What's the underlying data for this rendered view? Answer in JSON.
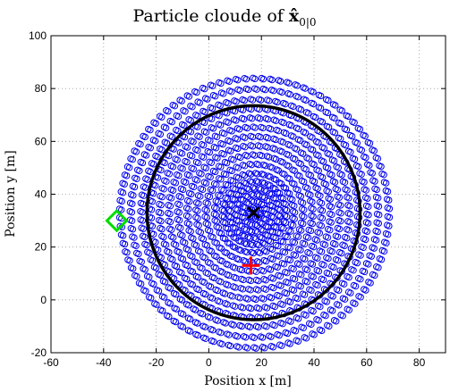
{
  "chart_data": {
    "type": "scatter",
    "title": "Particle cloude of ",
    "title_math": {
      "symbol": "x̂",
      "subscript": "0|0"
    },
    "xlabel": "Position x [m]",
    "ylabel": "Position y [m]",
    "xlim": [
      -60,
      90
    ],
    "ylim": [
      -20,
      100
    ],
    "xticks": [
      -60,
      -40,
      -20,
      0,
      20,
      40,
      60,
      80
    ],
    "yticks": [
      -20,
      0,
      20,
      40,
      60,
      80,
      100
    ],
    "grid": true,
    "particle_cloud": {
      "center": [
        17,
        33
      ],
      "rings": [
        {
          "radius": 2,
          "count": 8
        },
        {
          "radius": 4.5,
          "count": 14
        },
        {
          "radius": 7,
          "count": 20
        },
        {
          "radius": 9.5,
          "count": 26
        },
        {
          "radius": 12,
          "count": 32
        },
        {
          "radius": 15,
          "count": 38
        },
        {
          "radius": 18.5,
          "count": 44
        },
        {
          "radius": 22,
          "count": 50
        },
        {
          "radius": 25.5,
          "count": 56
        },
        {
          "radius": 29,
          "count": 62
        },
        {
          "radius": 32.5,
          "count": 68
        },
        {
          "radius": 36,
          "count": 74
        },
        {
          "radius": 39.5,
          "count": 80
        },
        {
          "radius": 43,
          "count": 86
        },
        {
          "radius": 47,
          "count": 92
        },
        {
          "radius": 51,
          "count": 98
        }
      ],
      "color": "#0000ee"
    },
    "uncertainty_circle": {
      "center": [
        17,
        33
      ],
      "radius": 40.5,
      "color": "#000000"
    },
    "markers": [
      {
        "name": "estimate",
        "shape": "x",
        "x": 17,
        "y": 33,
        "color": "#000000"
      },
      {
        "name": "true-position",
        "shape": "plus",
        "x": 16,
        "y": 13,
        "color": "#ff0000"
      },
      {
        "name": "sensor",
        "shape": "diamond",
        "x": -35,
        "y": 30,
        "color": "#00dd00"
      }
    ]
  }
}
